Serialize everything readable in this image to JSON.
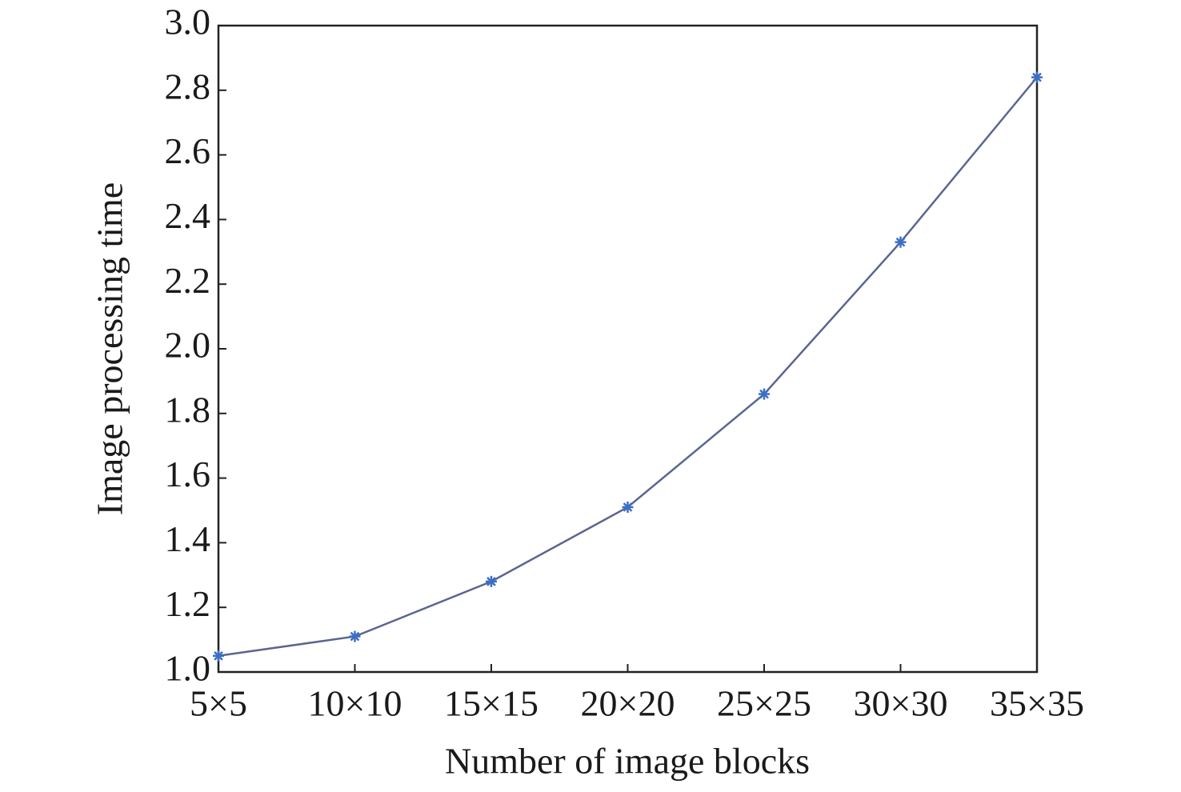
{
  "chart_data": {
    "type": "line",
    "x_label": "Number of image blocks",
    "y_label": "Image processing time",
    "categories": [
      "5×5",
      "10×10",
      "15×15",
      "20×20",
      "25×25",
      "30×30",
      "35×35"
    ],
    "series": [
      {
        "values": [
          1.05,
          1.11,
          1.28,
          1.51,
          1.86,
          2.33,
          2.84
        ],
        "color": "#5b6690",
        "marker_color": "#3c6ec4",
        "marker": "asterisk"
      }
    ],
    "ylim": [
      1.0,
      3.0
    ],
    "yticks": [
      {
        "value": 1.0,
        "label": "1.0"
      },
      1.2,
      1.4,
      1.6,
      1.8,
      {
        "value": 2.0,
        "label": "2.0"
      },
      2.2,
      2.4,
      2.6,
      2.8,
      {
        "value": 3.0,
        "label": "3.0"
      }
    ],
    "grid": false
  }
}
